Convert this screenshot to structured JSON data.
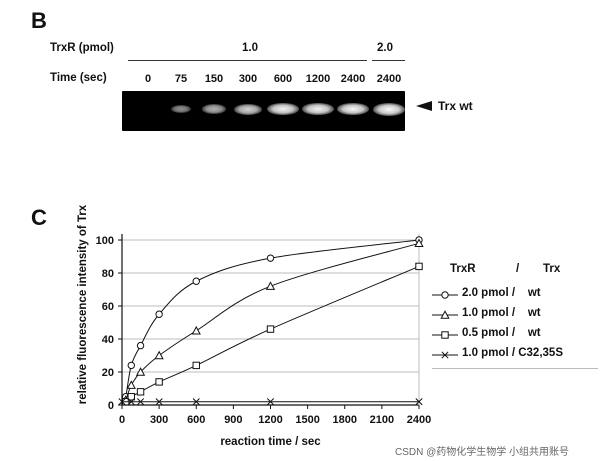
{
  "panel_b": {
    "letter": "B",
    "trxr_label": "TrxR (pmol)",
    "time_label": "Time (sec)",
    "trxr_group_1": "1.0",
    "trxr_group_2": "2.0",
    "lanes": [
      "0",
      "75",
      "150",
      "300",
      "600",
      "1200",
      "2400",
      "2400"
    ],
    "band_intensity": [
      0.0,
      0.35,
      0.55,
      0.75,
      0.95,
      0.95,
      0.98,
      1.0
    ],
    "band_label": "Trx wt",
    "arrow_icon": "arrow-left-icon"
  },
  "panel_c": {
    "letter": "C"
  },
  "chart_data": {
    "type": "line",
    "xlabel": "reaction time / sec",
    "ylabel": "relative fluorescence intensity of Trx",
    "xlim": [
      0,
      2400
    ],
    "ylim": [
      0,
      100
    ],
    "xticks": [
      "0",
      "300",
      "600",
      "900",
      "1200",
      "1500",
      "1800",
      "2100",
      "2400"
    ],
    "yticks": [
      "0",
      "20",
      "40",
      "60",
      "80",
      "100"
    ],
    "grid": "horizontal",
    "legend_header": {
      "trxr": "TrxR",
      "slash": "/",
      "trx": "Trx"
    },
    "series": [
      {
        "name": "2.0 pmol /    wt",
        "marker": "circle",
        "x": [
          0,
          30,
          75,
          150,
          300,
          600,
          1200,
          2400
        ],
        "y": [
          0,
          5,
          24,
          36,
          55,
          75,
          89,
          100
        ]
      },
      {
        "name": "1.0 pmol /    wt",
        "marker": "triangle",
        "x": [
          0,
          30,
          75,
          150,
          300,
          600,
          1200,
          2400
        ],
        "y": [
          0,
          3,
          12,
          20,
          30,
          45,
          72,
          98
        ]
      },
      {
        "name": "0.5 pmol /    wt",
        "marker": "square",
        "x": [
          0,
          30,
          75,
          150,
          300,
          600,
          1200,
          2400
        ],
        "y": [
          0,
          2,
          5,
          8,
          14,
          24,
          46,
          84
        ]
      },
      {
        "name": "1.0 pmol / C32,35S",
        "marker": "cross",
        "x": [
          0,
          75,
          150,
          300,
          600,
          1200,
          2400
        ],
        "y": [
          2,
          2,
          2,
          2,
          2,
          2,
          2
        ]
      }
    ]
  },
  "watermark": "CSDN @药物化学生物学 小组共用账号"
}
